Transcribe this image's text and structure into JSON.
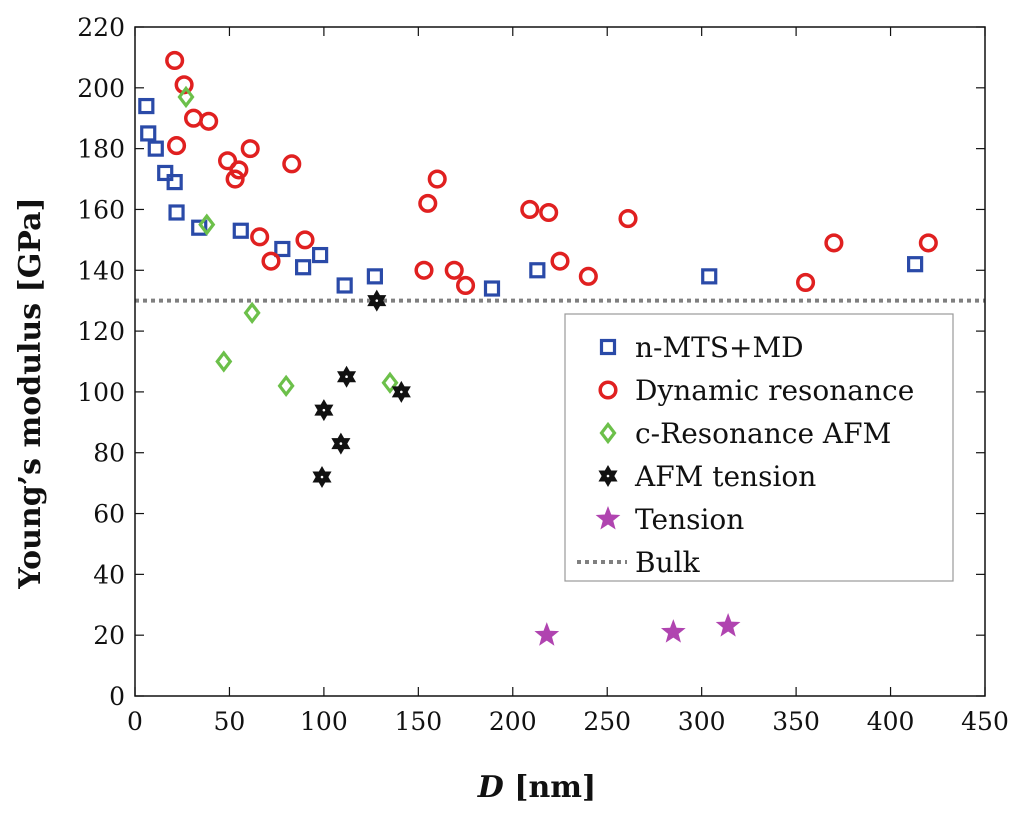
{
  "chart_data": {
    "type": "scatter",
    "xlabel_var": "D",
    "xlabel_unit": " [nm]",
    "ylabel": "Young’s modulus [GPa]",
    "xlim": [
      0,
      450
    ],
    "ylim": [
      0,
      220
    ],
    "xticks": [
      0,
      50,
      100,
      150,
      200,
      250,
      300,
      350,
      400,
      450
    ],
    "yticks": [
      0,
      20,
      40,
      60,
      80,
      100,
      120,
      140,
      160,
      180,
      200,
      220
    ],
    "grid": false,
    "legend_position": "right",
    "series": [
      {
        "name": "n-MTS+MD",
        "marker": "square",
        "color": "#2a4aa8",
        "points": [
          [
            6,
            194
          ],
          [
            7,
            185
          ],
          [
            11,
            180
          ],
          [
            16,
            172
          ],
          [
            21,
            169
          ],
          [
            22,
            159
          ],
          [
            34,
            154
          ],
          [
            56,
            153
          ],
          [
            78,
            147
          ],
          [
            89,
            141
          ],
          [
            98,
            145
          ],
          [
            111,
            135
          ],
          [
            127,
            138
          ],
          [
            189,
            134
          ],
          [
            213,
            140
          ],
          [
            304,
            138
          ],
          [
            413,
            142
          ]
        ]
      },
      {
        "name": "Dynamic resonance",
        "marker": "circle",
        "color": "#e02020",
        "points": [
          [
            21,
            209
          ],
          [
            26,
            201
          ],
          [
            31,
            190
          ],
          [
            22,
            181
          ],
          [
            39,
            189
          ],
          [
            49,
            176
          ],
          [
            53,
            170
          ],
          [
            55,
            173
          ],
          [
            61,
            180
          ],
          [
            66,
            151
          ],
          [
            72,
            143
          ],
          [
            83,
            175
          ],
          [
            90,
            150
          ],
          [
            153,
            140
          ],
          [
            155,
            162
          ],
          [
            160,
            170
          ],
          [
            169,
            140
          ],
          [
            175,
            135
          ],
          [
            209,
            160
          ],
          [
            219,
            159
          ],
          [
            225,
            143
          ],
          [
            240,
            138
          ],
          [
            261,
            157
          ],
          [
            355,
            136
          ],
          [
            370,
            149
          ],
          [
            420,
            149
          ]
        ]
      },
      {
        "name": "c-Resonance AFM",
        "marker": "diamond",
        "color": "#6cc04a",
        "points": [
          [
            27,
            197
          ],
          [
            38,
            155
          ],
          [
            47,
            110
          ],
          [
            62,
            126
          ],
          [
            80,
            102
          ],
          [
            135,
            103
          ]
        ]
      },
      {
        "name": "AFM tension",
        "marker": "hexagram",
        "color": "#111111",
        "points": [
          [
            128,
            130
          ],
          [
            100,
            94
          ],
          [
            112,
            105
          ],
          [
            109,
            83
          ],
          [
            99,
            72
          ],
          [
            141,
            100
          ]
        ]
      },
      {
        "name": "Tension",
        "marker": "star",
        "color": "#b044b0",
        "points": [
          [
            218,
            20
          ],
          [
            285,
            21
          ],
          [
            314,
            23
          ]
        ]
      }
    ],
    "reference_lines": [
      {
        "name": "Bulk",
        "y": 130,
        "style": "dotted",
        "color": "#808080"
      }
    ]
  }
}
